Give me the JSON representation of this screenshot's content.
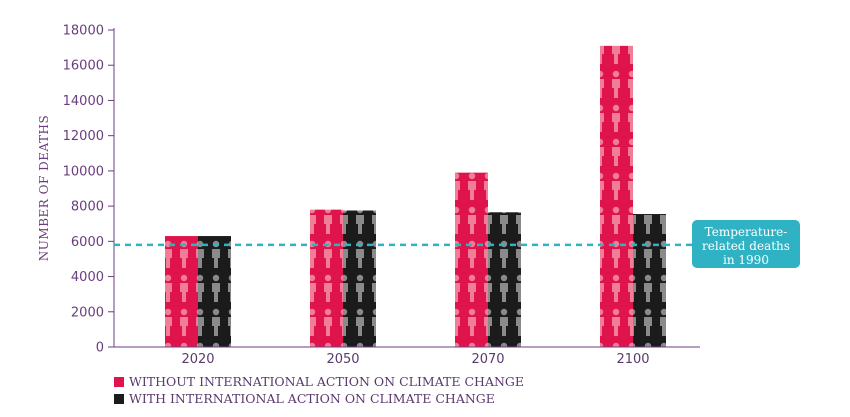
{
  "colors": {
    "without": "#e0144c",
    "without_light": "#f07e96",
    "with": "#1b1b1b",
    "with_light": "#8a8a8a",
    "axis": "#6b3d7e",
    "reference": "#2fb3c4"
  },
  "chart_data": {
    "type": "bar",
    "ylabel": "NUMBER OF DEATHS",
    "xlabel": "",
    "ylim": [
      0,
      18000
    ],
    "yticks": [
      "0",
      "2000",
      "4000",
      "6000",
      "8000",
      "10000",
      "12000",
      "14000",
      "16000",
      "18000"
    ],
    "categories": [
      "2020",
      "2050",
      "2070",
      "2100"
    ],
    "series": [
      {
        "name": "WITHOUT INTERNATIONAL ACTION ON CLIMATE CHANGE",
        "values": [
          6300,
          7800,
          9900,
          17100
        ]
      },
      {
        "name": "WITH INTERNATIONAL ACTION ON CLIMATE CHANGE",
        "values": [
          6300,
          7750,
          7650,
          7550
        ]
      }
    ],
    "reference_line": {
      "value": 5800,
      "label_lines": [
        "Temperature-",
        "related deaths",
        "in 1990"
      ]
    },
    "grid": false,
    "legend_position": "bottom-left"
  }
}
